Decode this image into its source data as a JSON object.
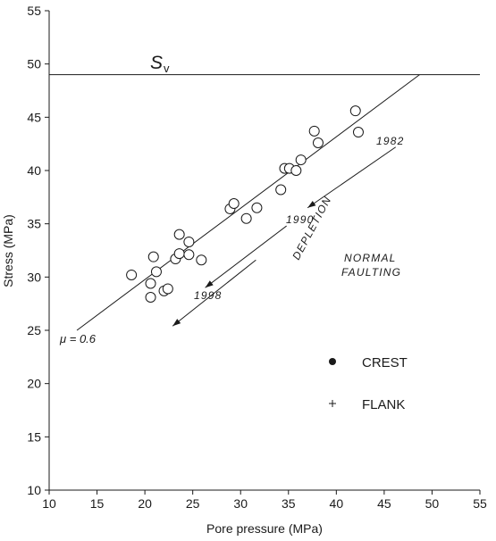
{
  "chart_data": {
    "type": "scatter",
    "title": "",
    "xlabel": "Pore pressure (MPa)",
    "ylabel": "Stress (MPa)",
    "xlim": [
      10,
      55
    ],
    "ylim": [
      10,
      55
    ],
    "xticks": [
      10,
      15,
      20,
      25,
      30,
      35,
      40,
      45,
      50,
      55
    ],
    "yticks": [
      10,
      15,
      20,
      25,
      30,
      35,
      40,
      45,
      50,
      55
    ],
    "grid": false,
    "series": [
      {
        "points": [
          [
            18.6,
            30.2
          ],
          [
            20.6,
            28.1
          ],
          [
            20.6,
            29.4
          ],
          [
            20.9,
            31.9
          ],
          [
            21.2,
            30.5
          ],
          [
            22.0,
            28.7
          ],
          [
            22.4,
            28.9
          ],
          [
            23.2,
            31.7
          ],
          [
            23.6,
            32.2
          ],
          [
            23.6,
            34.0
          ],
          [
            24.6,
            33.3
          ],
          [
            24.6,
            32.1
          ],
          [
            25.9,
            31.6
          ],
          [
            28.9,
            36.4
          ],
          [
            29.3,
            36.9
          ],
          [
            30.6,
            35.5
          ],
          [
            31.7,
            36.5
          ],
          [
            34.2,
            38.2
          ],
          [
            34.6,
            40.2
          ],
          [
            35.1,
            40.2
          ],
          [
            35.8,
            40.0
          ],
          [
            36.3,
            41.0
          ],
          [
            37.7,
            43.7
          ],
          [
            38.1,
            42.6
          ],
          [
            42.0,
            45.6
          ],
          [
            42.3,
            43.6
          ]
        ]
      }
    ],
    "sv_line": {
      "label": "S",
      "subscript": "v",
      "y": 49
    },
    "friction_line": {
      "label": "μ = 0.6",
      "x": [
        12.9,
        48.7
      ],
      "y": [
        25.0,
        49.0
      ]
    },
    "depletion_arrows": [
      {
        "x": [
          46.2,
          37.0
        ],
        "y": [
          42.2,
          36.5
        ]
      },
      {
        "x": [
          34.8,
          26.3
        ],
        "y": [
          34.8,
          29.0
        ]
      },
      {
        "x": [
          31.6,
          22.9
        ],
        "y": [
          31.6,
          25.4
        ]
      }
    ],
    "annotations": {
      "year_1982": "1982",
      "year_1990": "1990",
      "year_1998": "1998",
      "depletion": "DEPLETION",
      "normal_line1": "NORMAL",
      "normal_line2": "FAULTING"
    },
    "legend": [
      {
        "label": "CREST",
        "marker": "filled-circle"
      },
      {
        "label": "FLANK",
        "marker": "plus"
      }
    ],
    "colors": {
      "ink": "#1a1a1a",
      "background": "#ffffff"
    }
  }
}
